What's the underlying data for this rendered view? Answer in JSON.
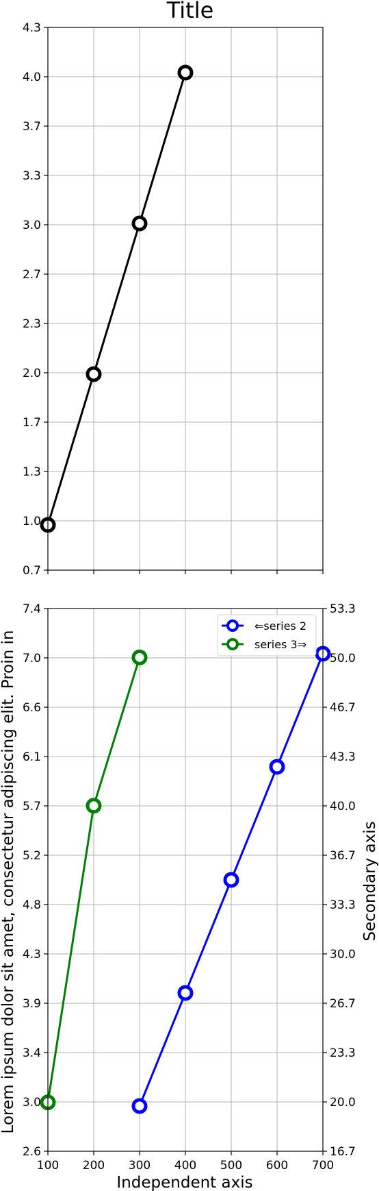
{
  "chart_data": [
    {
      "type": "line",
      "title": "Title",
      "xlim": [
        100,
        700
      ],
      "ylim": [
        0.7,
        4.3
      ],
      "x_ticks": [
        100,
        200,
        300,
        400,
        500,
        600,
        700
      ],
      "y_ticks": [
        "0.7",
        "1.0",
        "1.3",
        "1.7",
        "2.0",
        "2.3",
        "2.7",
        "3.0",
        "3.3",
        "3.7",
        "4.0",
        "4.3"
      ],
      "grid": true,
      "series": [
        {
          "x": [
            100,
            200,
            300,
            400
          ],
          "y": [
            1,
            2,
            3,
            4
          ],
          "color": "#000000"
        }
      ]
    },
    {
      "type": "line",
      "xlabel": "Independent axis",
      "ylabel": "Lorem ipsum dolor sit amet, consectetur adipiscing elit. Proin in",
      "y2label": "Secondary axis",
      "xlim": [
        100,
        700
      ],
      "ylim": [
        2.6,
        7.4
      ],
      "y2lim": [
        16.7,
        53.3
      ],
      "x_ticks": [
        "100",
        "200",
        "300",
        "400",
        "500",
        "600",
        "700"
      ],
      "y_ticks": [
        "2.6",
        "3.0",
        "3.4",
        "3.9",
        "4.3",
        "4.8",
        "5.2",
        "5.7",
        "6.1",
        "6.6",
        "7.0",
        "7.4"
      ],
      "y2_ticks": [
        "16.7",
        "20.0",
        "23.3",
        "26.7",
        "30.0",
        "33.3",
        "36.7",
        "40.0",
        "43.3",
        "46.7",
        "50.0",
        "53.3"
      ],
      "grid": true,
      "legend_position": "top-right",
      "series": [
        {
          "name": "⇐series 2",
          "axis": "left",
          "x": [
            300,
            400,
            500,
            600,
            700
          ],
          "y": [
            3,
            4,
            5,
            6,
            7
          ],
          "color": "#0000ff"
        },
        {
          "name": "series 3⇒",
          "axis": "right",
          "x": [
            100,
            200,
            300
          ],
          "y": [
            20,
            40,
            50
          ],
          "color": "#008000"
        }
      ]
    }
  ]
}
